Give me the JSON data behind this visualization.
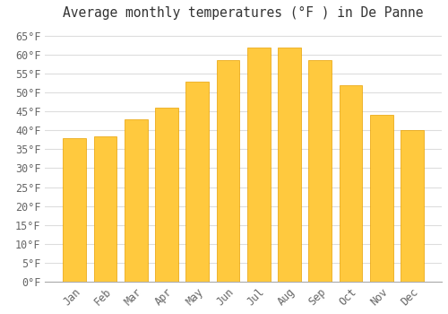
{
  "title": "Average monthly temperatures (°F ) in De Panne",
  "months": [
    "Jan",
    "Feb",
    "Mar",
    "Apr",
    "May",
    "Jun",
    "Jul",
    "Aug",
    "Sep",
    "Oct",
    "Nov",
    "Dec"
  ],
  "values": [
    38,
    38.5,
    43,
    46,
    53,
    58.5,
    62,
    62,
    58.5,
    52,
    44,
    40
  ],
  "bar_color_top": "#FFC93E",
  "bar_color_bottom": "#F5A800",
  "bar_edge_color": "#E8A000",
  "background_color": "#FFFFFF",
  "grid_color": "#DDDDDD",
  "ylim": [
    0,
    68
  ],
  "yticks": [
    0,
    5,
    10,
    15,
    20,
    25,
    30,
    35,
    40,
    45,
    50,
    55,
    60,
    65
  ],
  "ylabel_suffix": "°F",
  "title_fontsize": 10.5,
  "tick_fontsize": 8.5,
  "font_family": "monospace"
}
